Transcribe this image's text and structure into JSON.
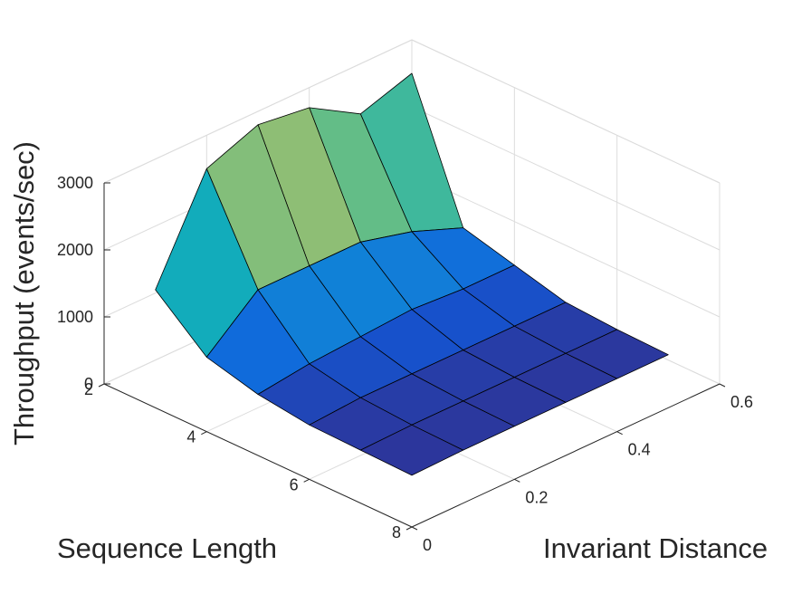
{
  "chart_data": {
    "type": "surface",
    "title": "",
    "xlabel": "Sequence Length",
    "ylabel": "Invariant Distance",
    "zlabel": "Throughput (events/sec)",
    "x_ticks": [
      "2",
      "4",
      "6",
      "8"
    ],
    "y_ticks": [
      "0",
      "0.2",
      "0.4",
      "0.6"
    ],
    "z_ticks": [
      "0",
      "1000",
      "2000",
      "3000"
    ],
    "xlim": [
      2,
      8
    ],
    "ylim": [
      0,
      0.6
    ],
    "zlim": [
      0,
      3000
    ],
    "grid": true,
    "colormap": "parula",
    "x": [
      2,
      3,
      4,
      5,
      6,
      7
    ],
    "y": [
      0.1,
      0.2,
      0.3,
      0.4,
      0.5,
      0.6
    ],
    "z": [
      [
        1050,
        2500,
        2800,
        2700,
        2250,
        2500
      ],
      [
        400,
        1050,
        1050,
        1050,
        850,
        550
      ],
      [
        200,
        300,
        350,
        400,
        350,
        350
      ],
      [
        100,
        150,
        150,
        150,
        150,
        150
      ],
      [
        80,
        100,
        100,
        100,
        100,
        100
      ],
      [
        60,
        80,
        80,
        80,
        80,
        80
      ]
    ]
  }
}
